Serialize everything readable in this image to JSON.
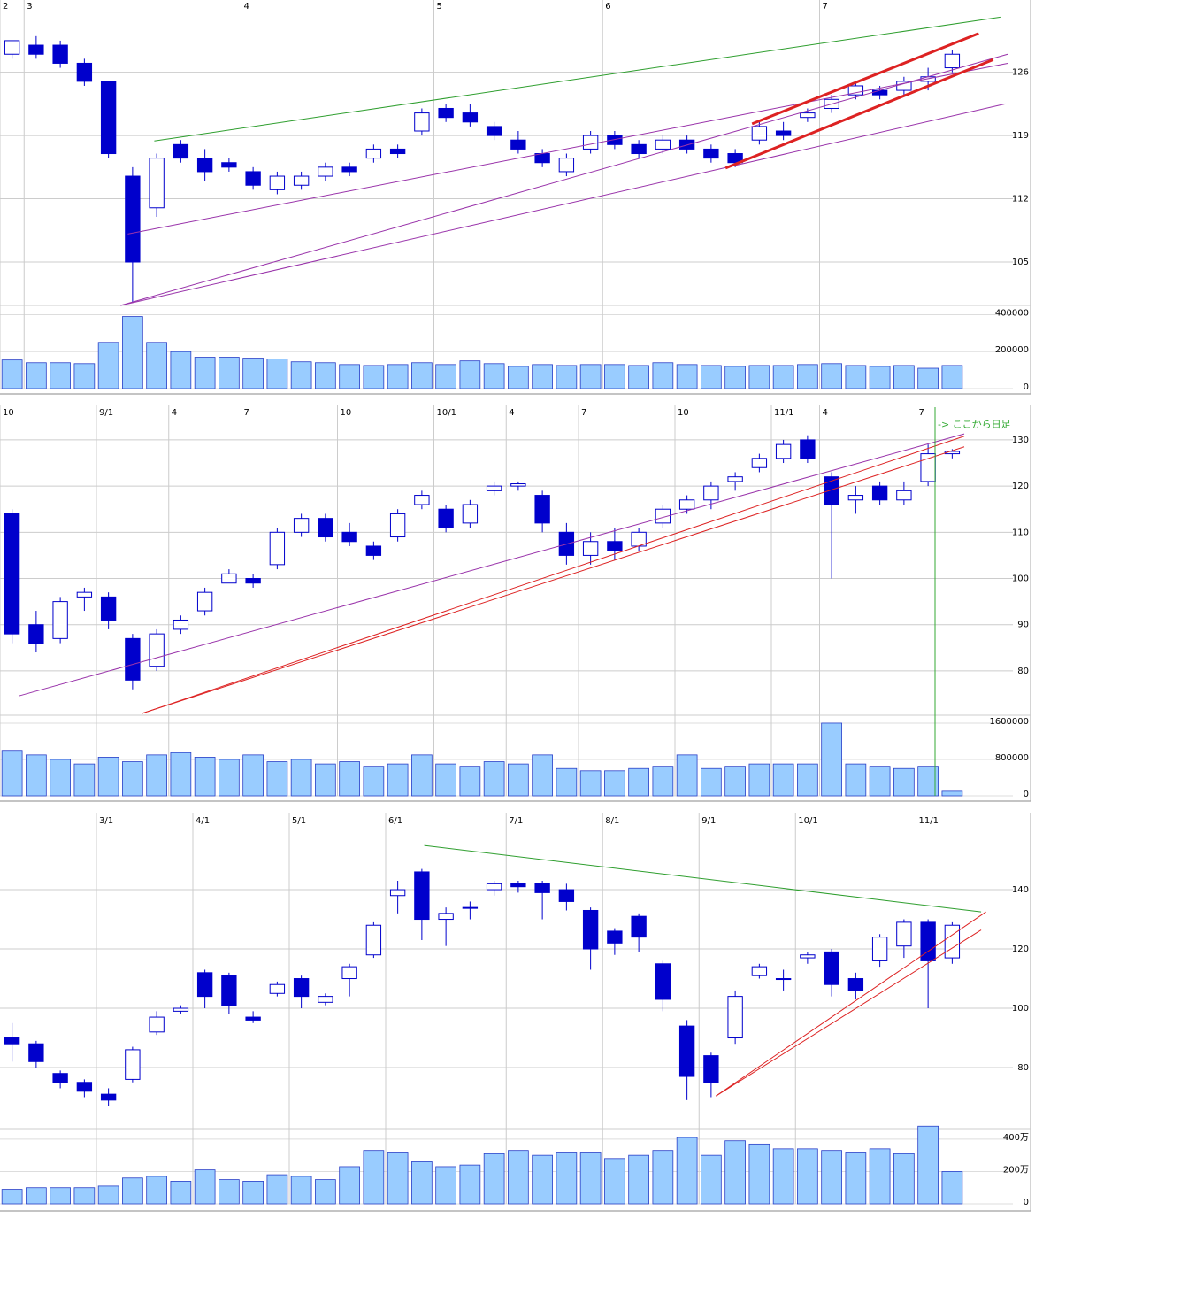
{
  "chart_data": [
    {
      "type": "candlestick",
      "categories": [
        "2",
        "3",
        null,
        null,
        null,
        null,
        null,
        null,
        null,
        null,
        "4",
        null,
        null,
        null,
        null,
        null,
        null,
        null,
        "5",
        null,
        null,
        null,
        null,
        null,
        null,
        "6",
        null,
        null,
        null,
        null,
        null,
        null,
        null,
        null,
        "7",
        null,
        null,
        null,
        null,
        null
      ],
      "open": [
        128,
        129,
        129,
        127,
        125,
        114.5,
        111,
        118,
        116.5,
        116,
        115,
        113,
        113.5,
        114.5,
        115.5,
        116.5,
        117.5,
        119.5,
        122,
        121.5,
        120,
        118.5,
        117,
        115,
        117.5,
        119,
        118,
        117.5,
        118.5,
        117.5,
        117,
        118.5,
        119.5,
        121,
        122,
        123.5,
        124,
        124,
        125,
        126.5
      ],
      "high": [
        129.5,
        130,
        129.5,
        127.5,
        125,
        115.5,
        117,
        118.5,
        117.5,
        116.5,
        115.5,
        115,
        115,
        116,
        116,
        118,
        118,
        122,
        122.5,
        122.5,
        120.5,
        119.5,
        117.5,
        117,
        119.5,
        119.5,
        118.5,
        119,
        119,
        118,
        117.5,
        120.5,
        120.5,
        122,
        123.5,
        125,
        124.5,
        125.5,
        126.5,
        128.5
      ],
      "low": [
        127.5,
        127.5,
        126.5,
        124.5,
        116.5,
        100.5,
        110,
        116,
        114,
        115,
        113,
        112.5,
        113,
        114,
        114.5,
        116,
        116.5,
        119,
        120.5,
        120,
        118.5,
        117,
        115.5,
        114.5,
        117,
        117.5,
        116.5,
        117,
        117,
        116,
        115.5,
        118,
        118.5,
        120.5,
        121.5,
        123,
        123,
        123.5,
        124,
        126
      ],
      "close": [
        129.5,
        128,
        127,
        125,
        117,
        105,
        116.5,
        116.5,
        115,
        115.5,
        113.5,
        114.5,
        114.5,
        115.5,
        115,
        117.5,
        117,
        121.5,
        121,
        120.5,
        119,
        117.5,
        116,
        116.5,
        119,
        118,
        117,
        118.5,
        117.5,
        116.5,
        116,
        120,
        119,
        121.5,
        123,
        124.5,
        123.5,
        125,
        125.5,
        128
      ],
      "volume": [
        155000,
        140000,
        140000,
        135000,
        250000,
        390000,
        250000,
        200000,
        170000,
        170000,
        165000,
        160000,
        145000,
        140000,
        130000,
        125000,
        130000,
        140000,
        130000,
        150000,
        135000,
        120000,
        130000,
        125000,
        130000,
        130000,
        125000,
        140000,
        130000,
        125000,
        120000,
        125000,
        125000,
        130000,
        135000,
        125000,
        120000,
        125000,
        110000,
        125000
      ],
      "ylim": [
        100.2,
        134
      ],
      "yticks": [
        105,
        112,
        119,
        126
      ],
      "vlim": [
        0,
        450000
      ],
      "vticks": [
        0,
        200000,
        400000
      ],
      "up_color": "#ffffff",
      "down_color": "#0000cc",
      "volume_color": "#99ccff",
      "grid": true,
      "trendlines": [
        {
          "color": "#2e9e2e",
          "from": [
            5.9,
            118.4
          ],
          "to": [
            41,
            132.1
          ]
        },
        {
          "color": "#9933aa",
          "from": [
            4.5,
            100.2
          ],
          "to": [
            41.2,
            122.5
          ]
        },
        {
          "color": "#9933aa",
          "from": [
            4.8,
            108.1
          ],
          "to": [
            41.3,
            127
          ]
        },
        {
          "color": "#9933aa",
          "from": [
            4.5,
            100.2
          ],
          "to": [
            41.3,
            128
          ]
        },
        {
          "color": "#dd2222",
          "from": [
            29.6,
            115.4
          ],
          "to": [
            40.7,
            127.4
          ]
        },
        {
          "color": "#dd2222",
          "from": [
            30.7,
            120.3
          ],
          "to": [
            40.1,
            130.3
          ]
        }
      ]
    },
    {
      "type": "candlestick",
      "categories": [
        "10",
        null,
        null,
        null,
        "9/1",
        null,
        null,
        "4",
        null,
        null,
        "7",
        null,
        null,
        null,
        "10",
        null,
        null,
        null,
        "10/1",
        null,
        null,
        "4",
        null,
        null,
        "7",
        null,
        null,
        null,
        "10",
        null,
        null,
        null,
        "11/1",
        null,
        "4",
        null,
        null,
        null,
        "7",
        null
      ],
      "open": [
        114,
        90,
        87,
        96,
        96,
        87,
        81,
        89,
        93,
        99,
        100,
        103,
        110,
        113,
        110,
        107,
        109,
        116,
        115,
        112,
        119,
        120,
        118,
        110,
        105,
        108,
        107,
        112,
        115,
        117,
        121,
        124,
        126,
        130,
        122,
        117,
        120,
        117,
        121,
        127
      ],
      "high": [
        115,
        93,
        96,
        98,
        97,
        88,
        89,
        92,
        98,
        102,
        101,
        111,
        114,
        114,
        112,
        108,
        115,
        119,
        116,
        117,
        121,
        121,
        119,
        112,
        110,
        111,
        111,
        116,
        118,
        121,
        123,
        127,
        130,
        131,
        123,
        120,
        121,
        121,
        129,
        128
      ],
      "low": [
        86,
        84,
        86,
        93,
        89,
        76,
        80,
        88,
        92,
        99,
        98,
        102,
        109,
        108,
        107,
        104,
        108,
        115,
        110,
        111,
        118,
        119,
        110,
        103,
        103,
        104,
        106,
        111,
        114,
        115,
        119,
        123,
        125,
        125,
        100,
        114,
        116,
        116,
        120,
        126
      ],
      "close": [
        88,
        86,
        95,
        97,
        91,
        78,
        88,
        91,
        97,
        101,
        99,
        110,
        113,
        109,
        108,
        105,
        114,
        118,
        111,
        116,
        120,
        120.5,
        112,
        105,
        108,
        106,
        110,
        115,
        117,
        120,
        122,
        126,
        129,
        126,
        116,
        118,
        117,
        119,
        127,
        127.5
      ],
      "volume": [
        1000000,
        900000,
        800000,
        700000,
        850000,
        750000,
        900000,
        950000,
        850000,
        800000,
        900000,
        750000,
        800000,
        700000,
        750000,
        650000,
        700000,
        900000,
        700000,
        650000,
        750000,
        700000,
        900000,
        600000,
        550000,
        550000,
        600000,
        650000,
        900000,
        600000,
        650000,
        700000,
        700000,
        700000,
        1600000,
        700000,
        650000,
        600000,
        650000,
        100000
      ],
      "ylim": [
        70.4,
        136.5
      ],
      "yticks": [
        80,
        90,
        100,
        110,
        120,
        130
      ],
      "vlim": [
        0,
        1775000
      ],
      "vticks": [
        0,
        800000,
        1600000
      ],
      "up_color": "#ffffff",
      "down_color": "#0000cc",
      "volume_color": "#99ccff",
      "grid": true,
      "annotation": "-> ここから日足",
      "annotation_color": "#33aa33",
      "trendlines": [
        {
          "color": "#9933aa",
          "from": [
            0.3,
            74.6
          ],
          "to": [
            39.5,
            131.3
          ]
        },
        {
          "color": "#dd2222",
          "from": [
            5.4,
            70.8
          ],
          "to": [
            39.5,
            128.5
          ]
        },
        {
          "color": "#dd2222",
          "from": [
            5.4,
            70.8
          ],
          "to": [
            39.5,
            130.8
          ]
        }
      ]
    },
    {
      "type": "candlestick",
      "categories": [
        null,
        null,
        null,
        null,
        "3/1",
        null,
        null,
        null,
        "4/1",
        null,
        null,
        null,
        "5/1",
        null,
        null,
        null,
        "6/1",
        null,
        null,
        null,
        null,
        "7/1",
        null,
        null,
        null,
        "8/1",
        null,
        null,
        null,
        "9/1",
        null,
        null,
        null,
        "10/1",
        null,
        null,
        null,
        null,
        "11/1",
        null
      ],
      "open": [
        90,
        88,
        78,
        75,
        71,
        76,
        92,
        99,
        112,
        111,
        97,
        105,
        110,
        102,
        110,
        118,
        138,
        146,
        130,
        134,
        140,
        142,
        142,
        140,
        133,
        126,
        131,
        115,
        94,
        84,
        90,
        111,
        110,
        117,
        119,
        110,
        116,
        121,
        129,
        117
      ],
      "high": [
        95,
        89,
        79,
        76,
        73,
        87,
        99,
        101,
        113,
        112,
        99,
        109,
        111,
        105,
        115,
        129,
        143,
        147,
        134,
        136,
        143,
        143,
        143,
        142,
        134,
        127,
        132,
        116,
        96,
        85,
        106,
        115,
        113,
        119,
        120,
        112,
        125,
        130,
        130,
        129
      ],
      "low": [
        82,
        80,
        73,
        70,
        67,
        75,
        91,
        98,
        100,
        98,
        95,
        104,
        100,
        101,
        104,
        117,
        132,
        123,
        121,
        130,
        138,
        139,
        130,
        133,
        113,
        118,
        119,
        99,
        69,
        70,
        88,
        110,
        106,
        115,
        104,
        103,
        114,
        117,
        100,
        115
      ],
      "close": [
        88,
        82,
        75,
        72,
        69,
        86,
        97,
        100,
        104,
        101,
        96,
        108,
        104,
        104,
        114,
        128,
        140,
        130,
        132,
        134,
        142,
        141,
        139,
        136,
        120,
        122,
        124,
        103,
        77,
        75,
        104,
        114,
        110,
        118,
        108,
        106,
        124,
        129,
        116,
        128
      ],
      "volume": [
        900000,
        1000000,
        1000000,
        1000000,
        1100000,
        1600000,
        1700000,
        1400000,
        2100000,
        1500000,
        1400000,
        1800000,
        1700000,
        1500000,
        2300000,
        3300000,
        3200000,
        2600000,
        2300000,
        2400000,
        3100000,
        3300000,
        3000000,
        3200000,
        3200000,
        2800000,
        3000000,
        3300000,
        4100000,
        3000000,
        3900000,
        3700000,
        3400000,
        3400000,
        3300000,
        3200000,
        3400000,
        3100000,
        4800000,
        2000000
      ],
      "ylim": [
        59.4,
        163.9
      ],
      "yticks": [
        80,
        100,
        120,
        140
      ],
      "vlim": [
        0,
        4650000
      ],
      "vticks": [
        0,
        {
          "value": 2000000,
          "label": "200万"
        },
        {
          "value": 4000000,
          "label": "400万"
        }
      ],
      "up_color": "#ffffff",
      "down_color": "#0000cc",
      "volume_color": "#99ccff",
      "grid": true,
      "trendlines": [
        {
          "color": "#2e9e2e",
          "from": [
            17.1,
            154.9
          ],
          "to": [
            40.2,
            132.5
          ]
        },
        {
          "color": "#dd2222",
          "from": [
            29.2,
            70.4
          ],
          "to": [
            40.4,
            132.5
          ]
        },
        {
          "color": "#dd2222",
          "from": [
            29.2,
            70.4
          ],
          "to": [
            40.2,
            126.4
          ]
        }
      ]
    }
  ]
}
